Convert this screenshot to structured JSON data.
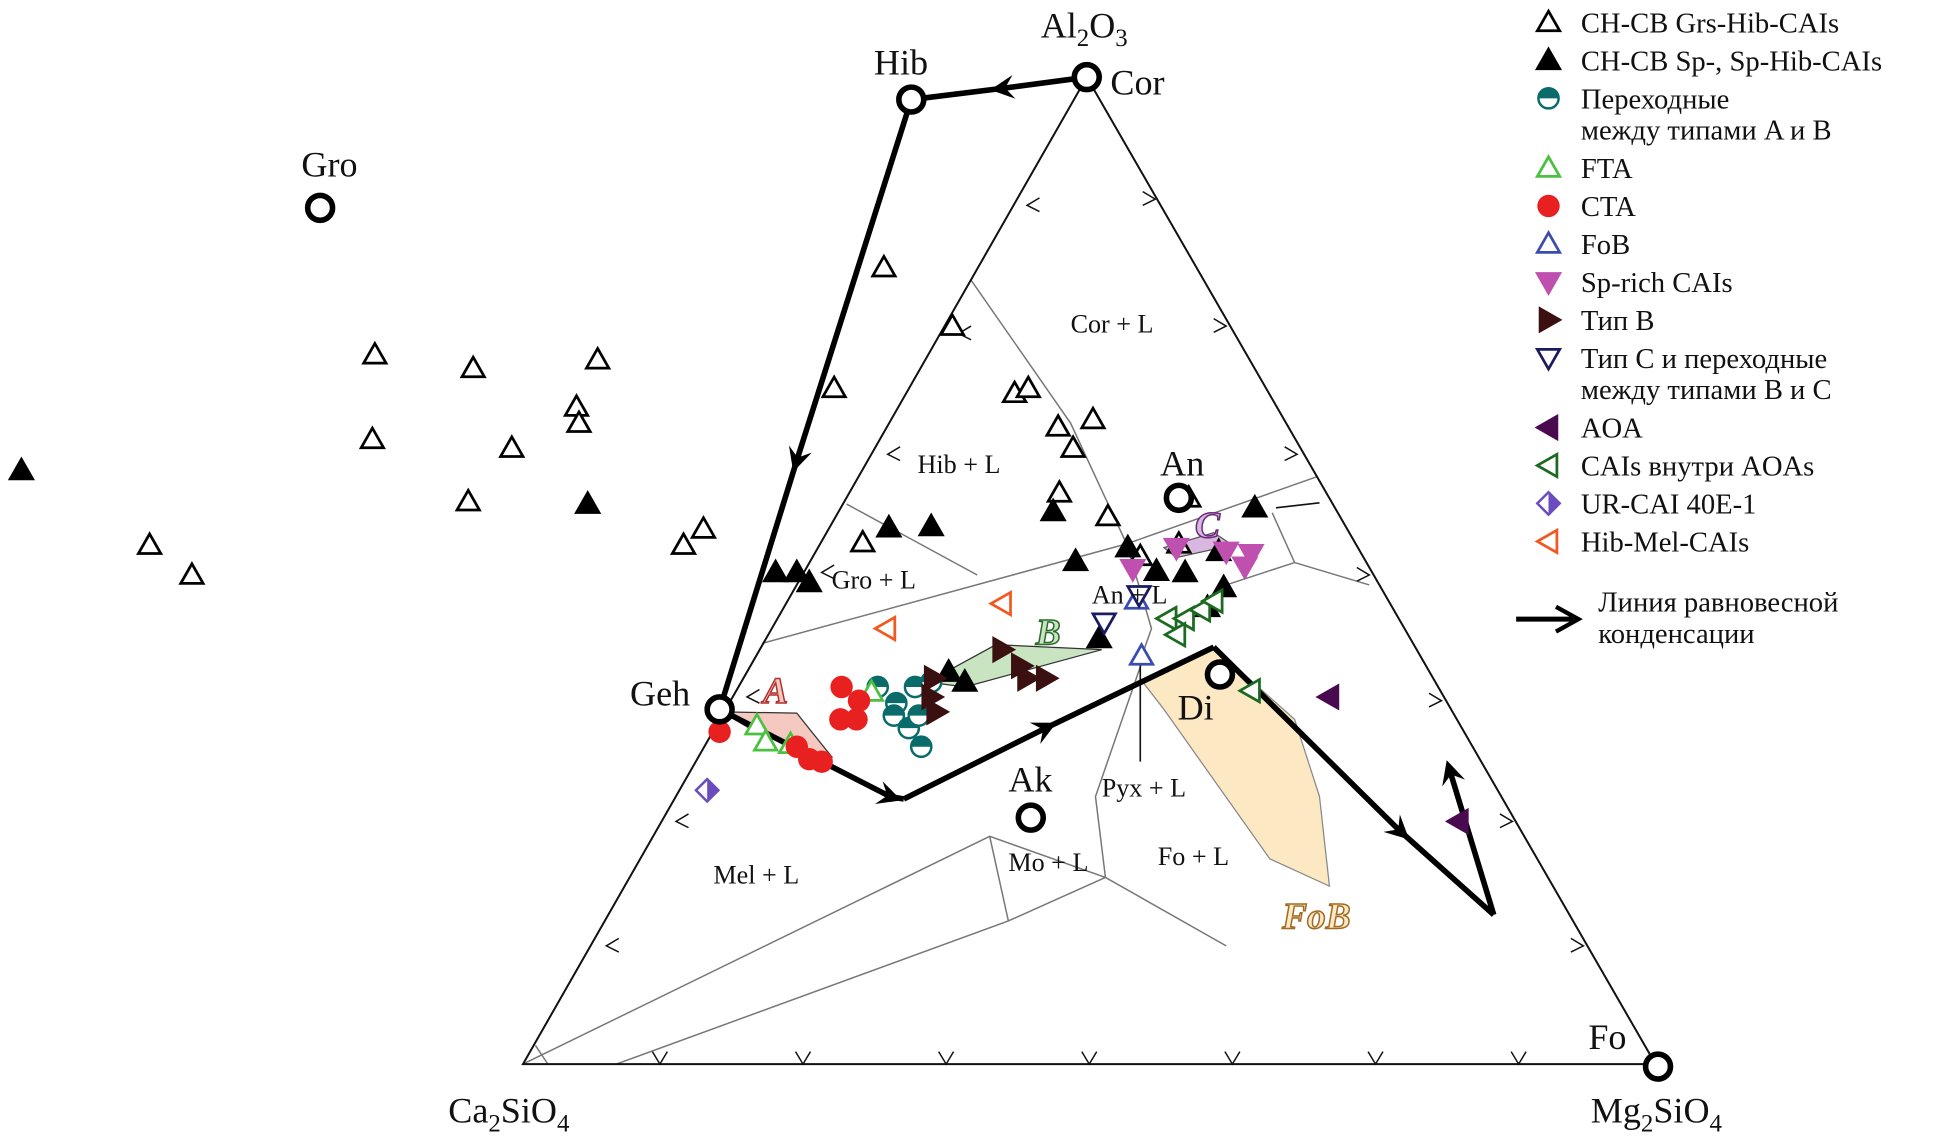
{
  "vertices": {
    "top": "Al",
    "top_sub1": "2",
    "top_mid": "O",
    "top_sub2": "3",
    "left": "Ca",
    "left_sub1": "2",
    "left_mid": "SiO",
    "left_sub2": "4",
    "right": "Mg",
    "right_sub1": "2",
    "right_mid": "SiO",
    "right_sub2": "4"
  },
  "minerals": {
    "gro": "Gro",
    "hib": "Hib",
    "cor": "Cor",
    "geh": "Geh",
    "ak": "Ak",
    "an": "An",
    "di": "Di",
    "fo": "Fo"
  },
  "phase_fields": {
    "cor": "Cor + L",
    "hib": "Hib + L",
    "gro": "Gro + L",
    "an": "An + L",
    "pyx": "Pyx + L",
    "fo": "Fo + L",
    "mo": "Mo + L",
    "mel": "Mel + L"
  },
  "regions": {
    "a": "A",
    "b": "B",
    "c": "C",
    "fob": "FoB"
  },
  "legend": [
    {
      "marker": "triangle-open",
      "color": "#000000",
      "lines": [
        "CH-CB Grs-Hib-CAIs"
      ]
    },
    {
      "marker": "triangle-filled",
      "color": "#000000",
      "lines": [
        "CH-CB Sp-, Sp-Hib-CAIs"
      ]
    },
    {
      "marker": "half-circle",
      "color": "#0a6b6b",
      "lines": [
        "Переходные",
        "между типами A и B"
      ]
    },
    {
      "marker": "triangle-open",
      "color": "#4cc040",
      "lines": [
        "FTA"
      ]
    },
    {
      "marker": "circle-filled",
      "color": "#e82020",
      "lines": [
        "CTA"
      ]
    },
    {
      "marker": "triangle-open",
      "color": "#3a4cb0",
      "lines": [
        "FoB"
      ]
    },
    {
      "marker": "triangle-down-filled",
      "color": "#c050b0",
      "lines": [
        "Sp-rich CAIs"
      ]
    },
    {
      "marker": "triangle-right-filled",
      "color": "#3a1010",
      "lines": [
        "Тип B"
      ]
    },
    {
      "marker": "triangle-down-open",
      "color": "#1a1a60",
      "lines": [
        "Тип C и переходные",
        "между типами B и C"
      ]
    },
    {
      "marker": "triangle-left-filled",
      "color": "#4a0a50",
      "lines": [
        "AOA"
      ]
    },
    {
      "marker": "triangle-left-open",
      "color": "#1a6a20",
      "lines": [
        "CAIs внутри AOAs"
      ]
    },
    {
      "marker": "diamond-half",
      "color": "#6a4cc0",
      "lines": [
        "UR-CAI 40E-1"
      ]
    },
    {
      "marker": "triangle-left-open",
      "color": "#f05a20",
      "lines": [
        "Hib-Mel-CAIs"
      ]
    },
    {
      "marker": "arrow",
      "color": "#000000",
      "lines": [
        "Линия равновесной",
        "конденсации"
      ]
    }
  ],
  "colors": {
    "region_a": "#f5c8c0",
    "region_b": "#c8e4c0",
    "region_c": "#d8b8e0",
    "region_fob": "#fde8c4",
    "phase_lines": "#777777"
  }
}
